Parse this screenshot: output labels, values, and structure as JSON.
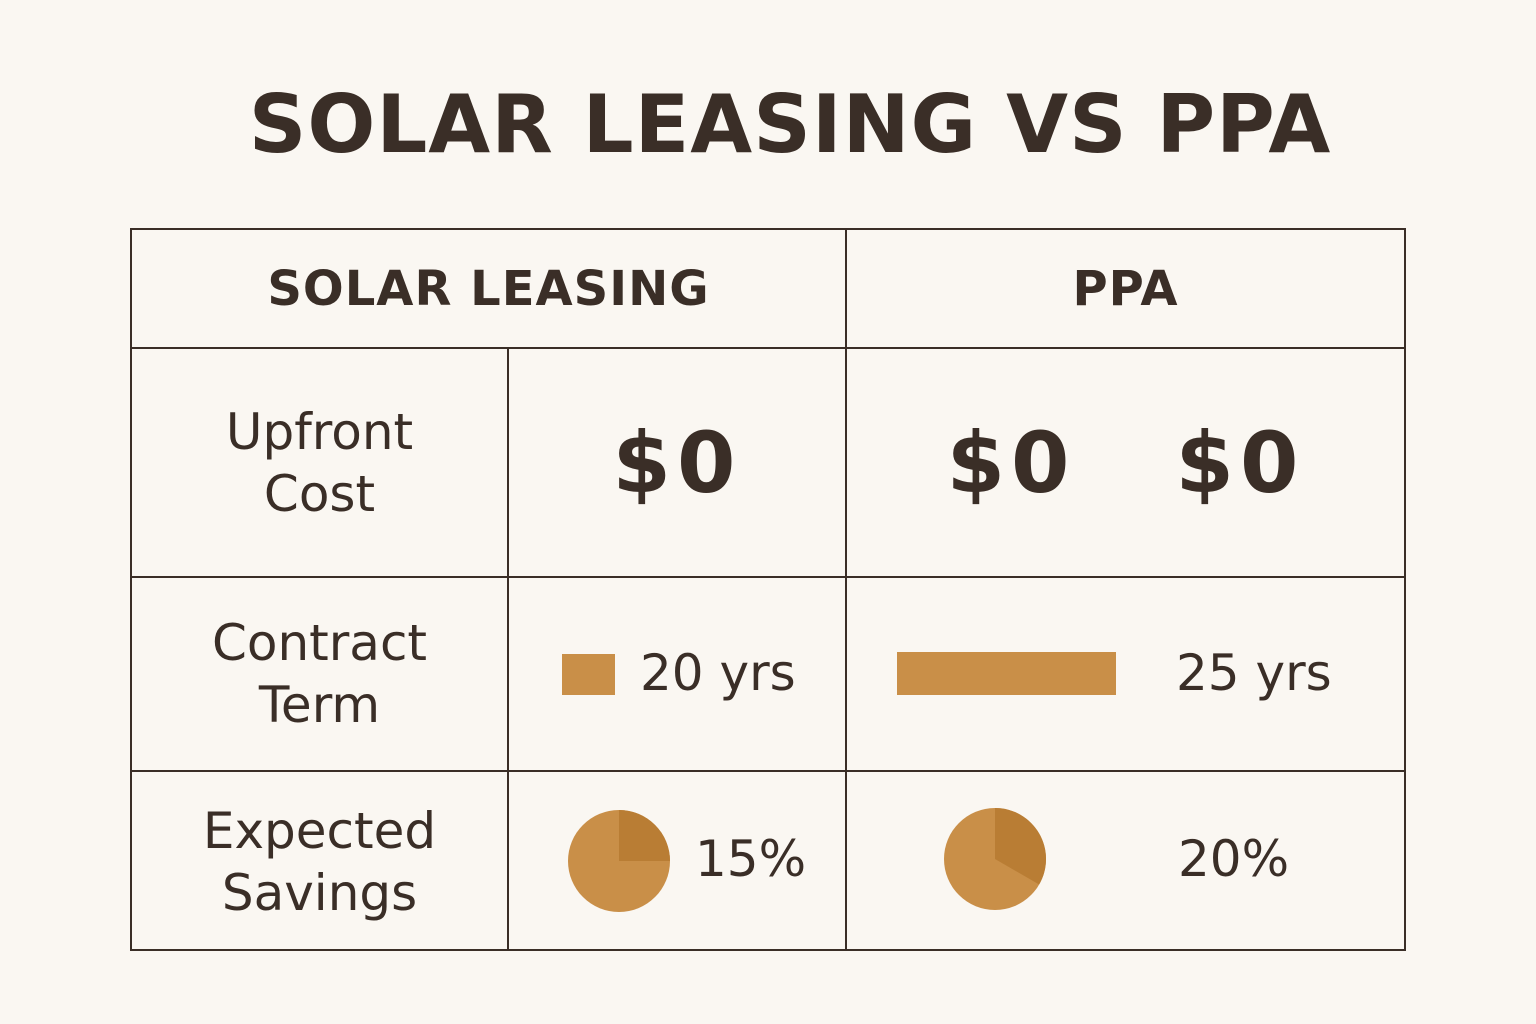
{
  "title": "SOLAR LEASING VS PPA",
  "columns": {
    "leasing": "SOLAR LEASING",
    "ppa": "PPA"
  },
  "rows": {
    "upfront": {
      "label_line1": "Upfront",
      "label_line2": "Cost",
      "leasing": "$0",
      "ppa_1": "$0",
      "ppa_2": "$0"
    },
    "term": {
      "label_line1": "Contract",
      "label_line2": "Term",
      "leasing": "20 yrs",
      "ppa": "25 yrs"
    },
    "savings": {
      "label_line1": "Expected",
      "label_line2": "Savings",
      "leasing": "15%",
      "ppa": "20%"
    }
  },
  "colors": {
    "accent": "#c98f48",
    "accent_dark": "#b97d34",
    "text": "#3a2e27",
    "background": "#faf7f2"
  },
  "chart_data": {
    "type": "table",
    "title": "SOLAR LEASING VS PPA",
    "categories": [
      "Upfront Cost",
      "Contract Term",
      "Expected Savings"
    ],
    "series": [
      {
        "name": "SOLAR LEASING",
        "values": [
          "$0",
          "20 yrs",
          "15%"
        ],
        "term_years": 20,
        "savings_pct": 15
      },
      {
        "name": "PPA",
        "values": [
          "$0",
          "25 yrs",
          "20%"
        ],
        "term_years": 25,
        "savings_pct": 20
      }
    ]
  }
}
